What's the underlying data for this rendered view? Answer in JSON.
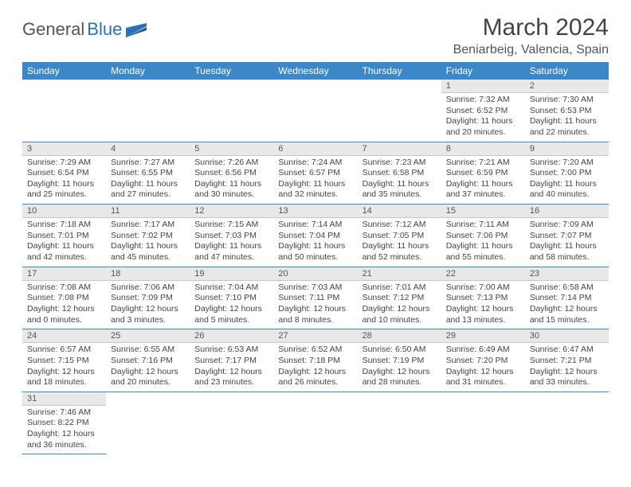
{
  "brand": {
    "first": "General",
    "second": "Blue"
  },
  "title": "March 2024",
  "location": "Beniarbeig, Valencia, Spain",
  "colors": {
    "header_bg": "#3b87c8",
    "header_fg": "#ffffff",
    "row_divider": "#3b87c8",
    "daynum_bg": "#e8e8e8"
  },
  "dayHeaders": [
    "Sunday",
    "Monday",
    "Tuesday",
    "Wednesday",
    "Thursday",
    "Friday",
    "Saturday"
  ],
  "weeks": [
    [
      {
        "n": "",
        "sr": "",
        "ss": "",
        "dl": ""
      },
      {
        "n": "",
        "sr": "",
        "ss": "",
        "dl": ""
      },
      {
        "n": "",
        "sr": "",
        "ss": "",
        "dl": ""
      },
      {
        "n": "",
        "sr": "",
        "ss": "",
        "dl": ""
      },
      {
        "n": "",
        "sr": "",
        "ss": "",
        "dl": ""
      },
      {
        "n": "1",
        "sr": "Sunrise: 7:32 AM",
        "ss": "Sunset: 6:52 PM",
        "dl": "Daylight: 11 hours and 20 minutes."
      },
      {
        "n": "2",
        "sr": "Sunrise: 7:30 AM",
        "ss": "Sunset: 6:53 PM",
        "dl": "Daylight: 11 hours and 22 minutes."
      }
    ],
    [
      {
        "n": "3",
        "sr": "Sunrise: 7:29 AM",
        "ss": "Sunset: 6:54 PM",
        "dl": "Daylight: 11 hours and 25 minutes."
      },
      {
        "n": "4",
        "sr": "Sunrise: 7:27 AM",
        "ss": "Sunset: 6:55 PM",
        "dl": "Daylight: 11 hours and 27 minutes."
      },
      {
        "n": "5",
        "sr": "Sunrise: 7:26 AM",
        "ss": "Sunset: 6:56 PM",
        "dl": "Daylight: 11 hours and 30 minutes."
      },
      {
        "n": "6",
        "sr": "Sunrise: 7:24 AM",
        "ss": "Sunset: 6:57 PM",
        "dl": "Daylight: 11 hours and 32 minutes."
      },
      {
        "n": "7",
        "sr": "Sunrise: 7:23 AM",
        "ss": "Sunset: 6:58 PM",
        "dl": "Daylight: 11 hours and 35 minutes."
      },
      {
        "n": "8",
        "sr": "Sunrise: 7:21 AM",
        "ss": "Sunset: 6:59 PM",
        "dl": "Daylight: 11 hours and 37 minutes."
      },
      {
        "n": "9",
        "sr": "Sunrise: 7:20 AM",
        "ss": "Sunset: 7:00 PM",
        "dl": "Daylight: 11 hours and 40 minutes."
      }
    ],
    [
      {
        "n": "10",
        "sr": "Sunrise: 7:18 AM",
        "ss": "Sunset: 7:01 PM",
        "dl": "Daylight: 11 hours and 42 minutes."
      },
      {
        "n": "11",
        "sr": "Sunrise: 7:17 AM",
        "ss": "Sunset: 7:02 PM",
        "dl": "Daylight: 11 hours and 45 minutes."
      },
      {
        "n": "12",
        "sr": "Sunrise: 7:15 AM",
        "ss": "Sunset: 7:03 PM",
        "dl": "Daylight: 11 hours and 47 minutes."
      },
      {
        "n": "13",
        "sr": "Sunrise: 7:14 AM",
        "ss": "Sunset: 7:04 PM",
        "dl": "Daylight: 11 hours and 50 minutes."
      },
      {
        "n": "14",
        "sr": "Sunrise: 7:12 AM",
        "ss": "Sunset: 7:05 PM",
        "dl": "Daylight: 11 hours and 52 minutes."
      },
      {
        "n": "15",
        "sr": "Sunrise: 7:11 AM",
        "ss": "Sunset: 7:06 PM",
        "dl": "Daylight: 11 hours and 55 minutes."
      },
      {
        "n": "16",
        "sr": "Sunrise: 7:09 AM",
        "ss": "Sunset: 7:07 PM",
        "dl": "Daylight: 11 hours and 58 minutes."
      }
    ],
    [
      {
        "n": "17",
        "sr": "Sunrise: 7:08 AM",
        "ss": "Sunset: 7:08 PM",
        "dl": "Daylight: 12 hours and 0 minutes."
      },
      {
        "n": "18",
        "sr": "Sunrise: 7:06 AM",
        "ss": "Sunset: 7:09 PM",
        "dl": "Daylight: 12 hours and 3 minutes."
      },
      {
        "n": "19",
        "sr": "Sunrise: 7:04 AM",
        "ss": "Sunset: 7:10 PM",
        "dl": "Daylight: 12 hours and 5 minutes."
      },
      {
        "n": "20",
        "sr": "Sunrise: 7:03 AM",
        "ss": "Sunset: 7:11 PM",
        "dl": "Daylight: 12 hours and 8 minutes."
      },
      {
        "n": "21",
        "sr": "Sunrise: 7:01 AM",
        "ss": "Sunset: 7:12 PM",
        "dl": "Daylight: 12 hours and 10 minutes."
      },
      {
        "n": "22",
        "sr": "Sunrise: 7:00 AM",
        "ss": "Sunset: 7:13 PM",
        "dl": "Daylight: 12 hours and 13 minutes."
      },
      {
        "n": "23",
        "sr": "Sunrise: 6:58 AM",
        "ss": "Sunset: 7:14 PM",
        "dl": "Daylight: 12 hours and 15 minutes."
      }
    ],
    [
      {
        "n": "24",
        "sr": "Sunrise: 6:57 AM",
        "ss": "Sunset: 7:15 PM",
        "dl": "Daylight: 12 hours and 18 minutes."
      },
      {
        "n": "25",
        "sr": "Sunrise: 6:55 AM",
        "ss": "Sunset: 7:16 PM",
        "dl": "Daylight: 12 hours and 20 minutes."
      },
      {
        "n": "26",
        "sr": "Sunrise: 6:53 AM",
        "ss": "Sunset: 7:17 PM",
        "dl": "Daylight: 12 hours and 23 minutes."
      },
      {
        "n": "27",
        "sr": "Sunrise: 6:52 AM",
        "ss": "Sunset: 7:18 PM",
        "dl": "Daylight: 12 hours and 26 minutes."
      },
      {
        "n": "28",
        "sr": "Sunrise: 6:50 AM",
        "ss": "Sunset: 7:19 PM",
        "dl": "Daylight: 12 hours and 28 minutes."
      },
      {
        "n": "29",
        "sr": "Sunrise: 6:49 AM",
        "ss": "Sunset: 7:20 PM",
        "dl": "Daylight: 12 hours and 31 minutes."
      },
      {
        "n": "30",
        "sr": "Sunrise: 6:47 AM",
        "ss": "Sunset: 7:21 PM",
        "dl": "Daylight: 12 hours and 33 minutes."
      }
    ],
    [
      {
        "n": "31",
        "sr": "Sunrise: 7:46 AM",
        "ss": "Sunset: 8:22 PM",
        "dl": "Daylight: 12 hours and 36 minutes."
      },
      {
        "n": "",
        "sr": "",
        "ss": "",
        "dl": ""
      },
      {
        "n": "",
        "sr": "",
        "ss": "",
        "dl": ""
      },
      {
        "n": "",
        "sr": "",
        "ss": "",
        "dl": ""
      },
      {
        "n": "",
        "sr": "",
        "ss": "",
        "dl": ""
      },
      {
        "n": "",
        "sr": "",
        "ss": "",
        "dl": ""
      },
      {
        "n": "",
        "sr": "",
        "ss": "",
        "dl": ""
      }
    ]
  ]
}
